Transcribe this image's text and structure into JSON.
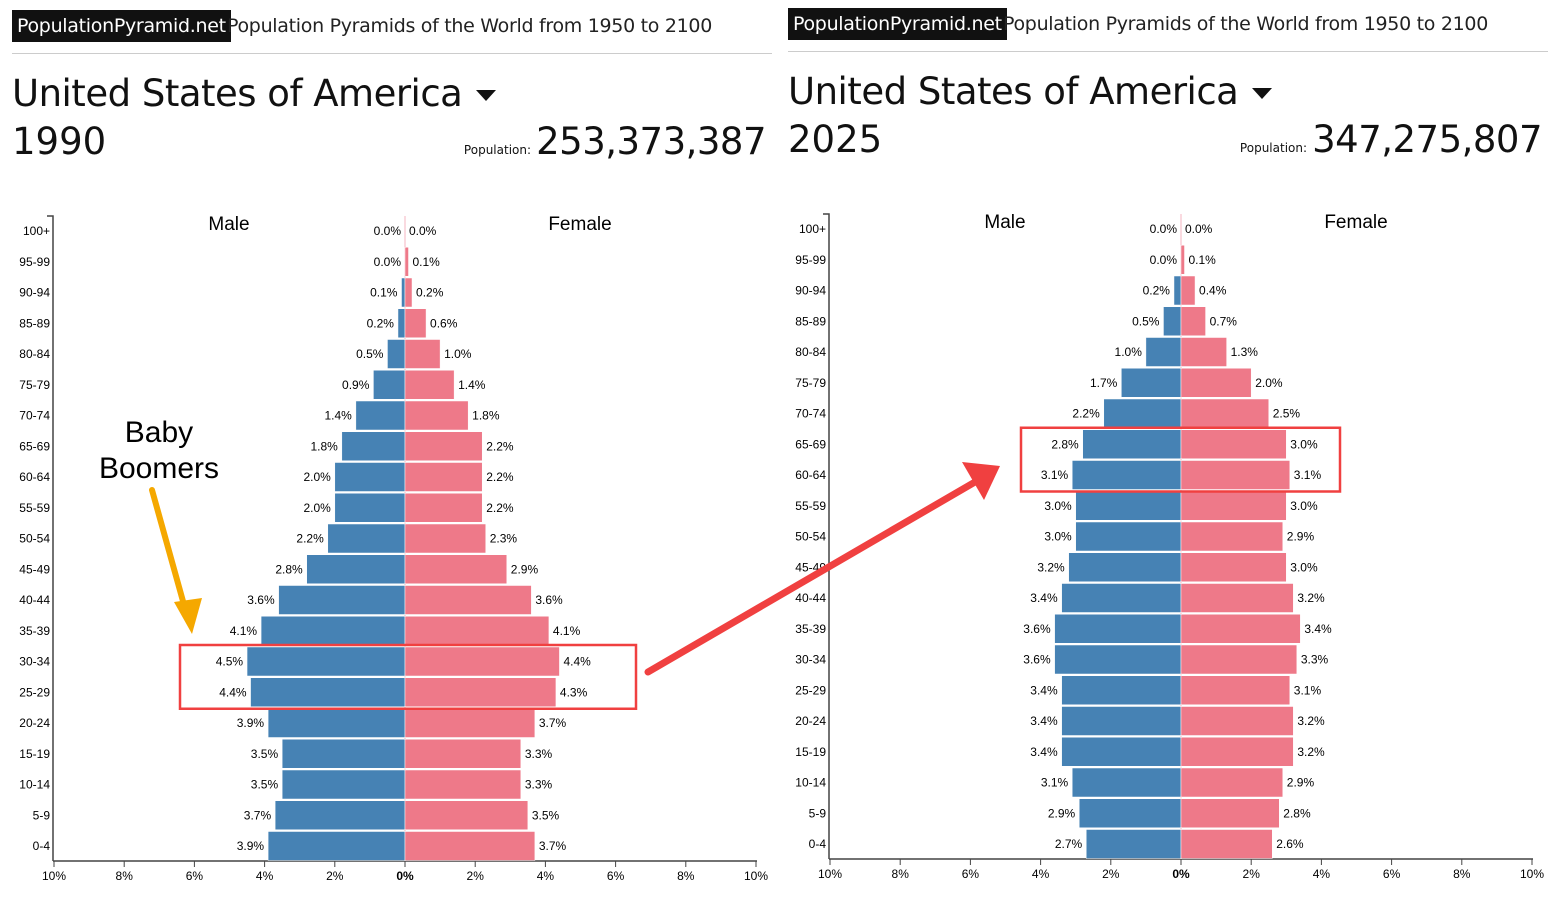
{
  "site": {
    "logo": "PopulationPyramid.net",
    "subtitle": "Population Pyramids of the World from 1950 to 2100"
  },
  "annotation": {
    "line1": "Baby",
    "line2": "Boomers",
    "arrow_color": "#f5a800",
    "highlight_color": "#f04040"
  },
  "colors": {
    "male": "#4682b4",
    "female": "#ee7989"
  },
  "panels": [
    {
      "country": "United States of America",
      "year": "1990",
      "population_label": "Population:",
      "population": "253,373,387"
    },
    {
      "country": "United States of America",
      "year": "2025",
      "population_label": "Population:",
      "population": "347,275,807"
    }
  ],
  "chart_data": [
    {
      "type": "bar",
      "title": "United States of America 1990",
      "series_labels": [
        "Male",
        "Female"
      ],
      "categories": [
        "100+",
        "95-99",
        "90-94",
        "85-89",
        "80-84",
        "75-79",
        "70-74",
        "65-69",
        "60-64",
        "55-59",
        "50-54",
        "45-49",
        "40-44",
        "35-39",
        "30-34",
        "25-29",
        "20-24",
        "15-19",
        "10-14",
        "5-9",
        "0-4"
      ],
      "series": [
        {
          "name": "Male",
          "values": [
            0.0,
            0.0,
            0.1,
            0.2,
            0.5,
            0.9,
            1.4,
            1.8,
            2.0,
            2.0,
            2.2,
            2.8,
            3.6,
            4.1,
            4.5,
            4.4,
            3.9,
            3.5,
            3.5,
            3.7,
            3.9
          ]
        },
        {
          "name": "Female",
          "values": [
            0.0,
            0.1,
            0.2,
            0.6,
            1.0,
            1.4,
            1.8,
            2.2,
            2.2,
            2.2,
            2.3,
            2.9,
            3.6,
            4.1,
            4.4,
            4.3,
            3.7,
            3.3,
            3.3,
            3.5,
            3.7
          ]
        }
      ],
      "xticks": [
        "10%",
        "8%",
        "6%",
        "4%",
        "2%",
        "0%",
        "2%",
        "4%",
        "6%",
        "8%",
        "10%"
      ],
      "xlim": [
        -10,
        10
      ],
      "highlighted": [
        "30-34",
        "25-29"
      ]
    },
    {
      "type": "bar",
      "title": "United States of America 2025",
      "series_labels": [
        "Male",
        "Female"
      ],
      "categories": [
        "100+",
        "95-99",
        "90-94",
        "85-89",
        "80-84",
        "75-79",
        "70-74",
        "65-69",
        "60-64",
        "55-59",
        "50-54",
        "45-49",
        "40-44",
        "35-39",
        "30-34",
        "25-29",
        "20-24",
        "15-19",
        "10-14",
        "5-9",
        "0-4"
      ],
      "series": [
        {
          "name": "Male",
          "values": [
            0.0,
            0.0,
            0.2,
            0.5,
            1.0,
            1.7,
            2.2,
            2.8,
            3.1,
            3.0,
            3.0,
            3.2,
            3.4,
            3.6,
            3.6,
            3.4,
            3.4,
            3.4,
            3.1,
            2.9,
            2.7
          ]
        },
        {
          "name": "Female",
          "values": [
            0.0,
            0.1,
            0.4,
            0.7,
            1.3,
            2.0,
            2.5,
            3.0,
            3.1,
            3.0,
            2.9,
            3.0,
            3.2,
            3.4,
            3.3,
            3.1,
            3.2,
            3.2,
            2.9,
            2.8,
            2.6
          ]
        }
      ],
      "xticks": [
        "10%",
        "8%",
        "6%",
        "4%",
        "2%",
        "0%",
        "2%",
        "4%",
        "6%",
        "8%",
        "10%"
      ],
      "xlim": [
        -10,
        10
      ],
      "highlighted": [
        "65-69",
        "60-64"
      ]
    }
  ]
}
